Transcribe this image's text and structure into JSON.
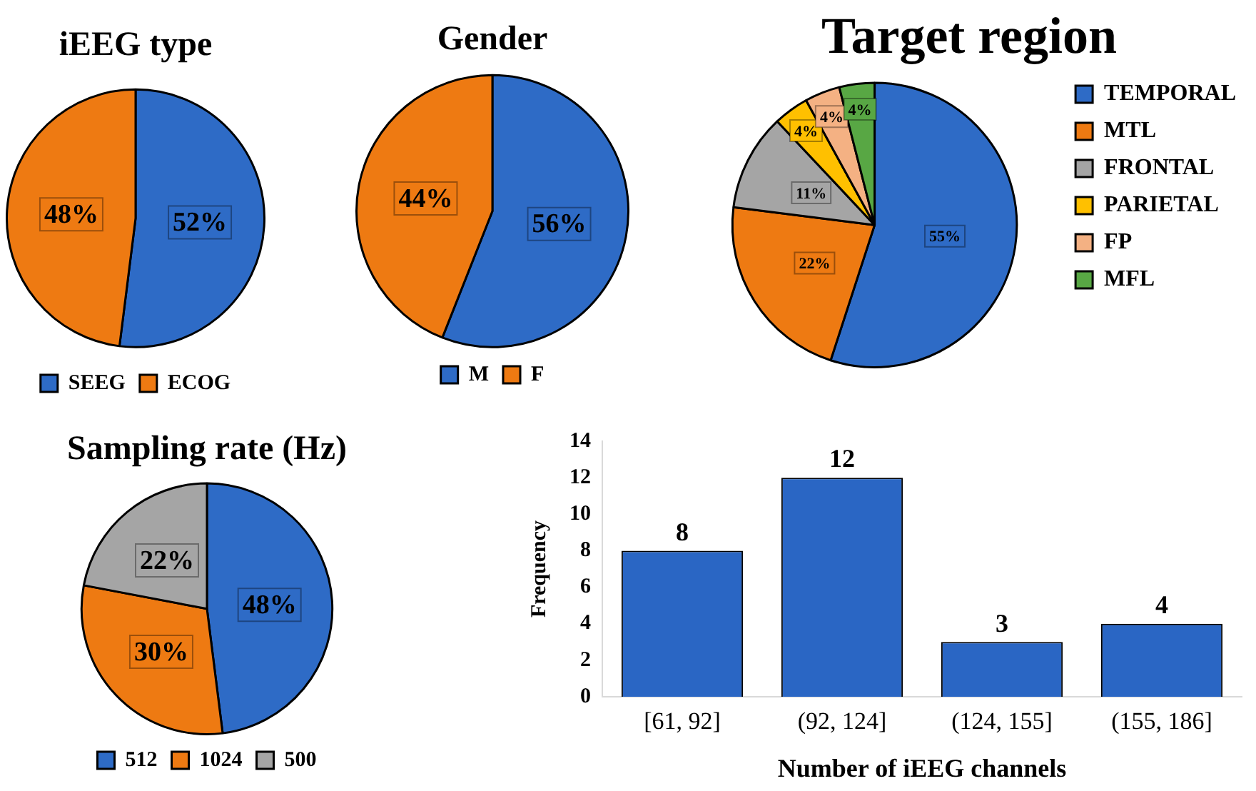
{
  "chart_data": [
    {
      "type": "pie",
      "title": "iEEG type",
      "categories": [
        "SEEG",
        "ECOG"
      ],
      "values": [
        52,
        48
      ],
      "colors": [
        "#2e6bc6",
        "#ee7a12"
      ],
      "value_labels": [
        "52%",
        "48%"
      ],
      "legend": "bottom"
    },
    {
      "type": "pie",
      "title": "Gender",
      "categories": [
        "M",
        "F"
      ],
      "values": [
        56,
        44
      ],
      "colors": [
        "#2e6bc6",
        "#ee7a12"
      ],
      "value_labels": [
        "56%",
        "44%"
      ],
      "legend": "bottom"
    },
    {
      "type": "pie",
      "title": "Target region",
      "categories": [
        "TEMPORAL",
        "MTL",
        "FRONTAL",
        "PARIETAL",
        "FP",
        "MFL"
      ],
      "values": [
        55,
        22,
        11,
        4,
        4,
        4
      ],
      "colors": [
        "#2e6bc6",
        "#ee7a12",
        "#a5a5a5",
        "#ffc000",
        "#f4b183",
        "#58a744"
      ],
      "value_labels": [
        "55%",
        "22%",
        "11%",
        "4%",
        "4%",
        "4%"
      ],
      "legend": "right"
    },
    {
      "type": "pie",
      "title": "Sampling rate (Hz)",
      "categories": [
        "512",
        "1024",
        "500"
      ],
      "values": [
        48,
        30,
        22
      ],
      "colors": [
        "#2e6bc6",
        "#ee7a12",
        "#a5a5a5"
      ],
      "value_labels": [
        "48%",
        "30%",
        "22%"
      ],
      "legend": "bottom"
    },
    {
      "type": "bar",
      "xlabel": "Number of iEEG channels",
      "ylabel": "Frequency",
      "categories": [
        "[61, 92]",
        "(92, 124]",
        "(124, 155]",
        "(155, 186]"
      ],
      "values": [
        8,
        12,
        3,
        4
      ],
      "color": "#2a66c4",
      "ylim": [
        0,
        14
      ],
      "yticks": [
        0,
        2,
        4,
        6,
        8,
        10,
        12,
        14
      ],
      "data_labels": true,
      "grid": false,
      "legend": false
    }
  ]
}
